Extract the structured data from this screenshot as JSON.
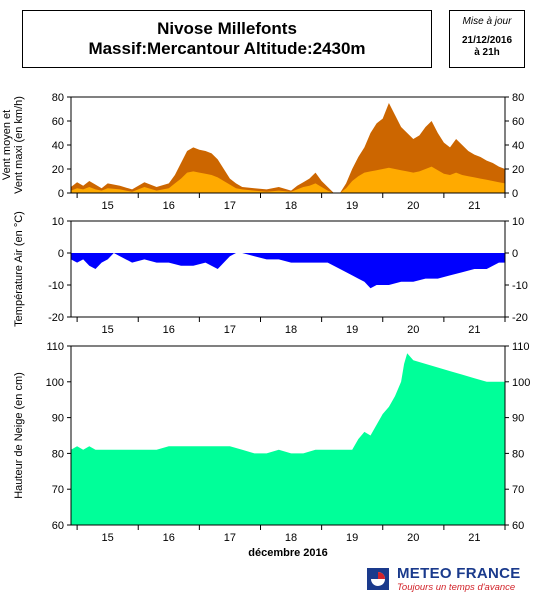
{
  "header": {
    "title_line1": "Nivose Millefonts",
    "title_line2": "Massif:Mercantour Altitude:2430m",
    "update_label": "Mise à jour",
    "update_date": "21/12/2016",
    "update_time": "à 21h"
  },
  "footer": {
    "brand_name": "METEO FRANCE",
    "brand_tagline": "Toujours un temps d'avance"
  },
  "colors": {
    "wind_max": "#cc6600",
    "wind_mean": "#ffaa00",
    "temperature": "#0000ff",
    "snow": "#00ff99",
    "brand_blue": "#1a3a8c",
    "brand_red": "#d2232a"
  },
  "chart_data": [
    {
      "type": "area",
      "ylabel": "Vent moyen et\nVent maxi (en km/h)",
      "ylim": [
        0,
        80
      ],
      "yticks": [
        0,
        20,
        40,
        60,
        80
      ],
      "xlim": [
        14.4,
        21.5
      ],
      "xticks": [
        "15",
        "16",
        "17",
        "18",
        "19",
        "20",
        "21"
      ],
      "series": [
        {
          "key": "max",
          "x": [
            14.4,
            14.5,
            14.6,
            14.7,
            14.8,
            14.9,
            15.0,
            15.2,
            15.4,
            15.6,
            15.8,
            16.0,
            16.1,
            16.2,
            16.3,
            16.4,
            16.5,
            16.6,
            16.7,
            16.8,
            16.9,
            17.0,
            17.1,
            17.2,
            17.4,
            17.6,
            17.8,
            18.0,
            18.1,
            18.2,
            18.3,
            18.4,
            18.5,
            18.6,
            18.7,
            18.8,
            18.9,
            19.0,
            19.1,
            19.2,
            19.3,
            19.4,
            19.5,
            19.6,
            19.7,
            19.8,
            19.9,
            20.0,
            20.1,
            20.2,
            20.3,
            20.4,
            20.5,
            20.6,
            20.7,
            20.8,
            20.9,
            21.0,
            21.1,
            21.2,
            21.3,
            21.4,
            21.5
          ],
          "y": [
            5,
            9,
            6,
            10,
            7,
            4,
            8,
            6,
            3,
            9,
            5,
            8,
            15,
            25,
            35,
            38,
            36,
            35,
            33,
            28,
            20,
            12,
            8,
            5,
            4,
            3,
            5,
            2,
            6,
            9,
            12,
            17,
            10,
            5,
            0,
            0,
            8,
            20,
            30,
            38,
            50,
            58,
            62,
            75,
            65,
            55,
            50,
            45,
            48,
            55,
            60,
            50,
            42,
            38,
            45,
            40,
            35,
            32,
            30,
            27,
            25,
            22,
            20
          ]
        },
        {
          "key": "mean",
          "x": [
            14.4,
            14.5,
            14.6,
            14.7,
            14.8,
            14.9,
            15.0,
            15.2,
            15.4,
            15.6,
            15.8,
            16.0,
            16.1,
            16.2,
            16.3,
            16.4,
            16.5,
            16.6,
            16.7,
            16.8,
            16.9,
            17.0,
            17.1,
            17.2,
            17.4,
            17.6,
            17.8,
            18.0,
            18.1,
            18.2,
            18.3,
            18.4,
            18.5,
            18.6,
            18.7,
            18.8,
            18.9,
            19.0,
            19.1,
            19.2,
            19.3,
            19.4,
            19.5,
            19.6,
            19.7,
            19.8,
            19.9,
            20.0,
            20.1,
            20.2,
            20.3,
            20.4,
            20.5,
            20.6,
            20.7,
            20.8,
            20.9,
            21.0,
            21.1,
            21.2,
            21.3,
            21.4,
            21.5
          ],
          "y": [
            2,
            4,
            3,
            5,
            3,
            2,
            4,
            3,
            1,
            5,
            2,
            4,
            8,
            12,
            17,
            18,
            17,
            16,
            15,
            13,
            10,
            7,
            4,
            3,
            2,
            1,
            2,
            1,
            3,
            5,
            6,
            8,
            5,
            2,
            0,
            0,
            4,
            10,
            14,
            17,
            18,
            19,
            20,
            21,
            20,
            19,
            18,
            17,
            18,
            20,
            22,
            19,
            16,
            15,
            17,
            15,
            14,
            13,
            12,
            11,
            10,
            9,
            8
          ]
        }
      ]
    },
    {
      "type": "area",
      "ylabel": "Température Air (en °C)",
      "ylim": [
        -20,
        10
      ],
      "yticks": [
        -20,
        -10,
        0,
        10
      ],
      "xlim": [
        14.4,
        21.5
      ],
      "xticks": [
        "15",
        "16",
        "17",
        "18",
        "19",
        "20",
        "21"
      ],
      "series": [
        {
          "key": "temp",
          "x": [
            14.4,
            14.5,
            14.6,
            14.7,
            14.8,
            14.9,
            15.0,
            15.1,
            15.2,
            15.4,
            15.6,
            15.8,
            16.0,
            16.2,
            16.4,
            16.6,
            16.8,
            16.9,
            17.0,
            17.1,
            17.2,
            17.4,
            17.6,
            17.8,
            18.0,
            18.2,
            18.4,
            18.6,
            18.8,
            19.0,
            19.1,
            19.2,
            19.3,
            19.4,
            19.6,
            19.8,
            20.0,
            20.2,
            20.4,
            20.6,
            20.8,
            21.0,
            21.2,
            21.4,
            21.5
          ],
          "y": [
            -2,
            -3,
            -2,
            -4,
            -5,
            -3,
            -2,
            0,
            -1,
            -3,
            -2,
            -3,
            -3,
            -4,
            -4,
            -3,
            -5,
            -3,
            -1,
            0,
            0,
            -1,
            -2,
            -2,
            -3,
            -3,
            -3,
            -3,
            -5,
            -7,
            -8,
            -9,
            -11,
            -10,
            -10,
            -9,
            -9,
            -8,
            -8,
            -7,
            -6,
            -5,
            -5,
            -3,
            -3
          ]
        }
      ]
    },
    {
      "type": "area",
      "ylabel": "Hauteur de Neige (en cm)",
      "ylim": [
        60,
        110
      ],
      "yticks": [
        60,
        70,
        80,
        90,
        100,
        110
      ],
      "xlim": [
        14.4,
        21.5
      ],
      "xticks": [
        "15",
        "16",
        "17",
        "18",
        "19",
        "20",
        "21"
      ],
      "xlabel": "décembre 2016",
      "series": [
        {
          "key": "snow",
          "x": [
            14.4,
            14.5,
            14.6,
            14.7,
            14.8,
            15.0,
            15.2,
            15.4,
            15.6,
            15.8,
            16.0,
            16.2,
            16.4,
            16.6,
            16.8,
            17.0,
            17.2,
            17.4,
            17.6,
            17.8,
            18.0,
            18.2,
            18.4,
            18.6,
            18.8,
            19.0,
            19.1,
            19.2,
            19.3,
            19.4,
            19.5,
            19.6,
            19.7,
            19.8,
            19.85,
            19.9,
            20.0,
            20.2,
            20.4,
            20.6,
            20.8,
            21.0,
            21.2,
            21.4,
            21.5
          ],
          "y": [
            81,
            82,
            81,
            82,
            81,
            81,
            81,
            81,
            81,
            81,
            82,
            82,
            82,
            82,
            82,
            82,
            81,
            80,
            80,
            81,
            80,
            80,
            81,
            81,
            81,
            81,
            84,
            86,
            85,
            88,
            91,
            93,
            96,
            100,
            105,
            108,
            106,
            105,
            104,
            103,
            102,
            101,
            100,
            100,
            100
          ]
        }
      ]
    }
  ]
}
